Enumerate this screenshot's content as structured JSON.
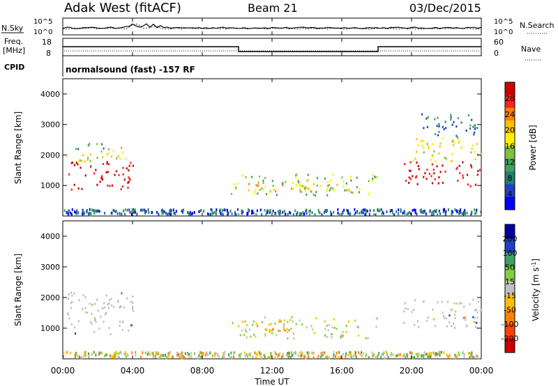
{
  "header": {
    "station": "Adak West (fitACF)",
    "beam": "Beam 21",
    "date": "03/Dec/2015"
  },
  "status_panels": {
    "nsky_label": "N.Sky",
    "nsky_ticks": [
      "10^5",
      "10^0"
    ],
    "nsearch_label": "N.Search",
    "nsearch_ticks": [
      "10^5",
      "10^0"
    ],
    "freq_label": "Freq.",
    "freq_unit": "[MHz]",
    "freq_ticks": [
      "18",
      "8"
    ],
    "nave_label": "Nave",
    "nave_ticks": [
      "60",
      "0"
    ],
    "cpid_label": "CPID",
    "cpid_text": "normalsound (fast) -157 RF"
  },
  "chart_data": [
    {
      "type": "heatmap",
      "name": "power",
      "ylabel": "Slant Range [km]",
      "ylim": [
        0,
        4500
      ],
      "yticks": [
        1000,
        2000,
        3000,
        4000
      ],
      "xlim_hours": [
        0,
        24
      ],
      "colorbar": {
        "label": "Power [dB]",
        "ticks": [
          "28",
          "24",
          "20",
          "16",
          "12",
          "8",
          "4"
        ],
        "colors": [
          "#cc0000",
          "#ff2020",
          "#ff7f00",
          "#ffc000",
          "#fff000",
          "#80c040",
          "#40a060",
          "#208070",
          "#2040c0",
          "#0000ff"
        ]
      },
      "regions": [
        {
          "t": [
            0.2,
            4.0
          ],
          "r": [
            900,
            1800
          ],
          "level": 9
        },
        {
          "t": [
            0.2,
            4.0
          ],
          "r": [
            1800,
            2200
          ],
          "level": 5
        },
        {
          "t": [
            0.5,
            3.5
          ],
          "r": [
            2200,
            2400
          ],
          "level": 3
        },
        {
          "t": [
            9.5,
            18.0
          ],
          "r": [
            700,
            1400
          ],
          "level": 4
        },
        {
          "t": [
            10.5,
            16.5
          ],
          "r": [
            800,
            1100
          ],
          "level": 6
        },
        {
          "t": [
            19.5,
            24.0
          ],
          "r": [
            1000,
            1800
          ],
          "level": 9
        },
        {
          "t": [
            20.0,
            24.0
          ],
          "r": [
            1800,
            2600
          ],
          "level": 5
        },
        {
          "t": [
            20.5,
            24.0
          ],
          "r": [
            2600,
            3400
          ],
          "level": 2
        }
      ]
    },
    {
      "type": "heatmap",
      "name": "velocity",
      "ylabel": "Slant Range [km]",
      "ylim": [
        0,
        4500
      ],
      "yticks": [
        1000,
        2000,
        3000,
        4000
      ],
      "xlim_hours": [
        0,
        24
      ],
      "xticks": [
        "00:00",
        "04:00",
        "08:00",
        "12:00",
        "16:00",
        "20:00",
        "00:00"
      ],
      "xlabel": "Time UT",
      "colorbar": {
        "label": "Velocity [m s^-1]",
        "ticks": [
          "200",
          "100",
          "50",
          "15",
          "-15",
          "-50",
          "-100",
          "-200"
        ],
        "colors": [
          "#0000a0",
          "#2040c0",
          "#40a060",
          "#80d040",
          "#c0c0c0",
          "#ffc000",
          "#ff8000",
          "#ff4000",
          "#cc0000"
        ]
      },
      "regions": [
        {
          "t": [
            0.2,
            4.0
          ],
          "r": [
            800,
            2200
          ],
          "value": "ground"
        },
        {
          "t": [
            9.5,
            18.0
          ],
          "r": [
            700,
            1400
          ],
          "value": "mixed"
        },
        {
          "t": [
            10.5,
            13.5
          ],
          "r": [
            900,
            1300
          ],
          "value": "negative"
        },
        {
          "t": [
            19.5,
            24.0
          ],
          "r": [
            1000,
            2000
          ],
          "value": "ground"
        }
      ]
    }
  ]
}
